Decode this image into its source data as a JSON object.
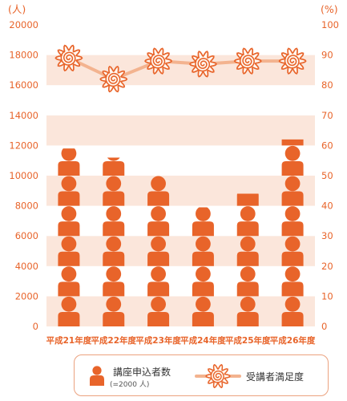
{
  "chart_data": {
    "type": "pictograph-with-line",
    "categories": [
      "平成21年度",
      "平成22年度",
      "平成23年度",
      "平成24年度",
      "平成25年度",
      "平成26年度"
    ],
    "series": [
      {
        "name": "講座申込者数",
        "axis": "left",
        "values": [
          11800,
          11200,
          10000,
          7900,
          8800,
          12400
        ]
      },
      {
        "name": "受講者満足度",
        "axis": "right",
        "values": [
          89,
          82,
          88,
          87,
          88,
          88
        ]
      }
    ],
    "y_left": {
      "unit": "(人)",
      "ylim": [
        0,
        20000
      ],
      "ticks": [
        0,
        2000,
        4000,
        6000,
        8000,
        10000,
        12000,
        14000,
        16000,
        18000,
        20000
      ]
    },
    "y_right": {
      "unit": "(%)",
      "ylim": [
        0,
        100
      ],
      "ticks": [
        0,
        10,
        20,
        30,
        40,
        50,
        60,
        70,
        80,
        90,
        100
      ]
    },
    "icon_unit": 2000,
    "band_colors": [
      "#ffffff",
      "#fbe6db"
    ],
    "colors": {
      "people": "#e8642a",
      "line": "#f3b38f",
      "text": "#e8642a"
    }
  },
  "legend": {
    "count_label": "講座申込者数",
    "count_note": "(=2000 人)",
    "sat_label": "受講者満足度"
  }
}
